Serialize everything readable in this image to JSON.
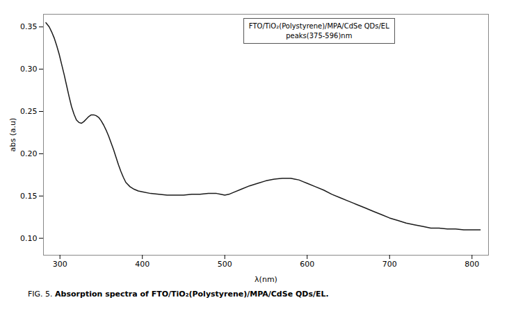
{
  "chart_data": {
    "type": "line",
    "xlabel": "λ(nm)",
    "ylabel": "abs (a.u)",
    "annotation": [
      "FTO/TiO₂(Polystyrene)/MPA/CdSe QDs/EL",
      "peaks(375-596)nm"
    ],
    "caption_label": "FIG. 5.",
    "caption": "Absorption spectra of FTO/TiO₂(Polystyrene)/MPA/CdSe QDs/EL.",
    "color": "#1a1a1a",
    "xlim": [
      280,
      820
    ],
    "ylim": [
      0.08,
      0.365
    ],
    "xticks": [
      300,
      400,
      500,
      600,
      700,
      800
    ],
    "yticks": [
      {
        "value": 0.1,
        "label": "0.10"
      },
      0.15,
      {
        "value": 0.2,
        "label": "0.20"
      },
      0.25,
      {
        "value": 0.3,
        "label": "0.30"
      },
      0.35
    ],
    "x": [
      283,
      287,
      290,
      293,
      296,
      299,
      302,
      305,
      308,
      311,
      314,
      317,
      320,
      323,
      326,
      329,
      332,
      335,
      338,
      341,
      344,
      347,
      350,
      353,
      356,
      359,
      362,
      365,
      368,
      371,
      374,
      377,
      380,
      385,
      390,
      395,
      400,
      410,
      420,
      430,
      440,
      450,
      460,
      470,
      480,
      490,
      495,
      500,
      505,
      510,
      520,
      530,
      540,
      550,
      560,
      570,
      575,
      580,
      585,
      590,
      595,
      600,
      610,
      620,
      630,
      640,
      650,
      660,
      670,
      680,
      690,
      700,
      710,
      720,
      730,
      740,
      750,
      760,
      770,
      780,
      790,
      800,
      810
    ],
    "values": [
      0.355,
      0.35,
      0.344,
      0.337,
      0.328,
      0.318,
      0.306,
      0.294,
      0.281,
      0.268,
      0.256,
      0.247,
      0.24,
      0.237,
      0.236,
      0.238,
      0.241,
      0.244,
      0.246,
      0.246,
      0.245,
      0.243,
      0.239,
      0.234,
      0.228,
      0.221,
      0.213,
      0.205,
      0.196,
      0.187,
      0.179,
      0.172,
      0.166,
      0.161,
      0.158,
      0.156,
      0.155,
      0.153,
      0.152,
      0.151,
      0.151,
      0.151,
      0.152,
      0.152,
      0.153,
      0.153,
      0.152,
      0.151,
      0.152,
      0.154,
      0.158,
      0.162,
      0.165,
      0.168,
      0.17,
      0.171,
      0.171,
      0.171,
      0.17,
      0.169,
      0.167,
      0.165,
      0.161,
      0.157,
      0.152,
      0.148,
      0.144,
      0.14,
      0.136,
      0.132,
      0.128,
      0.124,
      0.121,
      0.118,
      0.116,
      0.114,
      0.112,
      0.112,
      0.111,
      0.111,
      0.11,
      0.11,
      0.11
    ]
  }
}
